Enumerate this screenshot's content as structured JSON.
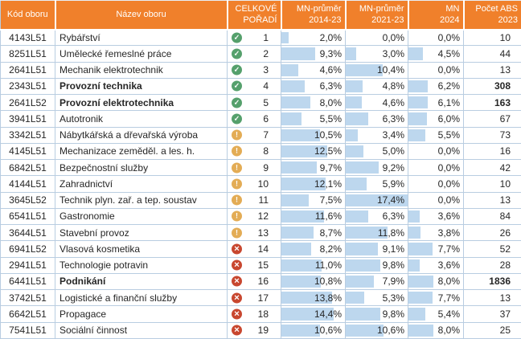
{
  "bar_scale_max": 17.4,
  "colors": {
    "header_bg": "#F0802B",
    "bar_fill": "#BDD7EE",
    "grid_line": "#B9CDE1",
    "status_ok": "#55A06C",
    "status_warn": "#E3AC55",
    "status_bad": "#C8472F"
  },
  "icons": {
    "ok": "✓",
    "warn": "!",
    "bad": "✕"
  },
  "header": {
    "columns": [
      {
        "line1": "Kód oboru",
        "line2": ""
      },
      {
        "line1": "Název oboru",
        "line2": ""
      },
      {
        "line1": "CELKOVÉ",
        "line2": "POŘADÍ"
      },
      {
        "line1": "MN-průměr",
        "line2": "2014-23"
      },
      {
        "line1": "MN-průměr",
        "line2": "2021-23"
      },
      {
        "line1": "MN",
        "line2": "2024"
      },
      {
        "line1": "Počet ABS",
        "line2": "2023"
      }
    ]
  },
  "rows": [
    {
      "code": "4143L51",
      "name": "Rybářství",
      "bold": false,
      "status": "ok",
      "rank": "1",
      "pcts": [
        {
          "t": "2,0%",
          "v": 2.0
        },
        {
          "t": "0,0%",
          "v": 0
        },
        {
          "t": "0,0%",
          "v": 0
        }
      ],
      "abs": "10"
    },
    {
      "code": "8251L51",
      "name": "Umělecké řemeslné práce",
      "bold": false,
      "status": "ok",
      "rank": "2",
      "pcts": [
        {
          "t": "9,3%",
          "v": 9.3
        },
        {
          "t": "3,0%",
          "v": 3.0
        },
        {
          "t": "4,5%",
          "v": 4.5
        }
      ],
      "abs": "44"
    },
    {
      "code": "2641L51",
      "name": "Mechanik elektrotechnik",
      "bold": false,
      "status": "ok",
      "rank": "3",
      "pcts": [
        {
          "t": "4,6%",
          "v": 4.6
        },
        {
          "t": "10,4%",
          "v": 10.4
        },
        {
          "t": "0,0%",
          "v": 0
        }
      ],
      "abs": "13"
    },
    {
      "code": "2343L51",
      "name": "Provozní technika",
      "bold": true,
      "status": "ok",
      "rank": "4",
      "pcts": [
        {
          "t": "6,3%",
          "v": 6.3
        },
        {
          "t": "4,8%",
          "v": 4.8
        },
        {
          "t": "6,2%",
          "v": 6.2
        }
      ],
      "abs": "308"
    },
    {
      "code": "2641L52",
      "name": "Provozní elektrotechnika",
      "bold": true,
      "status": "ok",
      "rank": "5",
      "pcts": [
        {
          "t": "8,0%",
          "v": 8.0
        },
        {
          "t": "4,6%",
          "v": 4.6
        },
        {
          "t": "6,1%",
          "v": 6.1
        }
      ],
      "abs": "163"
    },
    {
      "code": "3941L51",
      "name": "Autotronik",
      "bold": false,
      "status": "ok",
      "rank": "6",
      "pcts": [
        {
          "t": "5,5%",
          "v": 5.5
        },
        {
          "t": "6,3%",
          "v": 6.3
        },
        {
          "t": "6,0%",
          "v": 6.0
        }
      ],
      "abs": "67"
    },
    {
      "code": "3342L51",
      "name": "Nábytkářská a dřevařská výroba",
      "bold": false,
      "status": "warn",
      "rank": "7",
      "pcts": [
        {
          "t": "10,5%",
          "v": 10.5
        },
        {
          "t": "3,4%",
          "v": 3.4
        },
        {
          "t": "5,5%",
          "v": 5.5
        }
      ],
      "abs": "73"
    },
    {
      "code": "4145L51",
      "name": "Mechanizace zeměděl. a les. h.",
      "bold": false,
      "status": "warn",
      "rank": "8",
      "pcts": [
        {
          "t": "12,5%",
          "v": 12.5
        },
        {
          "t": "5,0%",
          "v": 5.0
        },
        {
          "t": "0,0%",
          "v": 0
        }
      ],
      "abs": "16"
    },
    {
      "code": "6842L51",
      "name": "Bezpečnostní služby",
      "bold": false,
      "status": "warn",
      "rank": "9",
      "pcts": [
        {
          "t": "9,7%",
          "v": 9.7
        },
        {
          "t": "9,2%",
          "v": 9.2
        },
        {
          "t": "0,0%",
          "v": 0
        }
      ],
      "abs": "42"
    },
    {
      "code": "4144L51",
      "name": "Zahradnictví",
      "bold": false,
      "status": "warn",
      "rank": "10",
      "pcts": [
        {
          "t": "12,1%",
          "v": 12.1
        },
        {
          "t": "5,9%",
          "v": 5.9
        },
        {
          "t": "0,0%",
          "v": 0
        }
      ],
      "abs": "10"
    },
    {
      "code": "3645L52",
      "name": "Technik plyn. zař. a tep. soustav",
      "bold": false,
      "status": "warn",
      "rank": "11",
      "pcts": [
        {
          "t": "7,5%",
          "v": 7.5
        },
        {
          "t": "17,4%",
          "v": 17.4
        },
        {
          "t": "0,0%",
          "v": 0
        }
      ],
      "abs": "13"
    },
    {
      "code": "6541L51",
      "name": "Gastronomie",
      "bold": false,
      "status": "warn",
      "rank": "12",
      "pcts": [
        {
          "t": "11,6%",
          "v": 11.6
        },
        {
          "t": "6,3%",
          "v": 6.3
        },
        {
          "t": "3,6%",
          "v": 3.6
        }
      ],
      "abs": "84"
    },
    {
      "code": "3644L51",
      "name": "Stavební provoz",
      "bold": false,
      "status": "warn",
      "rank": "13",
      "pcts": [
        {
          "t": "8,7%",
          "v": 8.7
        },
        {
          "t": "11,8%",
          "v": 11.8
        },
        {
          "t": "3,8%",
          "v": 3.8
        }
      ],
      "abs": "26"
    },
    {
      "code": "6941L52",
      "name": "Vlasová kosmetika",
      "bold": false,
      "status": "bad",
      "rank": "14",
      "pcts": [
        {
          "t": "8,2%",
          "v": 8.2
        },
        {
          "t": "9,1%",
          "v": 9.1
        },
        {
          "t": "7,7%",
          "v": 7.7
        }
      ],
      "abs": "52"
    },
    {
      "code": "2941L51",
      "name": "Technologie potravin",
      "bold": false,
      "status": "bad",
      "rank": "15",
      "pcts": [
        {
          "t": "11,0%",
          "v": 11.0
        },
        {
          "t": "9,8%",
          "v": 9.8
        },
        {
          "t": "3,6%",
          "v": 3.6
        }
      ],
      "abs": "28"
    },
    {
      "code": "6441L51",
      "name": "Podnikání",
      "bold": true,
      "status": "bad",
      "rank": "16",
      "pcts": [
        {
          "t": "10,8%",
          "v": 10.8
        },
        {
          "t": "7,9%",
          "v": 7.9
        },
        {
          "t": "8,0%",
          "v": 8.0
        }
      ],
      "abs": "1836"
    },
    {
      "code": "3742L51",
      "name": "Logistické a finanční služby",
      "bold": false,
      "status": "bad",
      "rank": "17",
      "pcts": [
        {
          "t": "13,8%",
          "v": 13.8
        },
        {
          "t": "5,3%",
          "v": 5.3
        },
        {
          "t": "7,7%",
          "v": 7.7
        }
      ],
      "abs": "13"
    },
    {
      "code": "6642L51",
      "name": "Propagace",
      "bold": false,
      "status": "bad",
      "rank": "18",
      "pcts": [
        {
          "t": "14,4%",
          "v": 14.4
        },
        {
          "t": "9,8%",
          "v": 9.8
        },
        {
          "t": "5,4%",
          "v": 5.4
        }
      ],
      "abs": "37"
    },
    {
      "code": "7541L51",
      "name": "Sociální činnost",
      "bold": false,
      "status": "bad",
      "rank": "19",
      "pcts": [
        {
          "t": "10,6%",
          "v": 10.6
        },
        {
          "t": "10,6%",
          "v": 10.6
        },
        {
          "t": "8,0%",
          "v": 8.0
        }
      ],
      "abs": "25"
    }
  ]
}
